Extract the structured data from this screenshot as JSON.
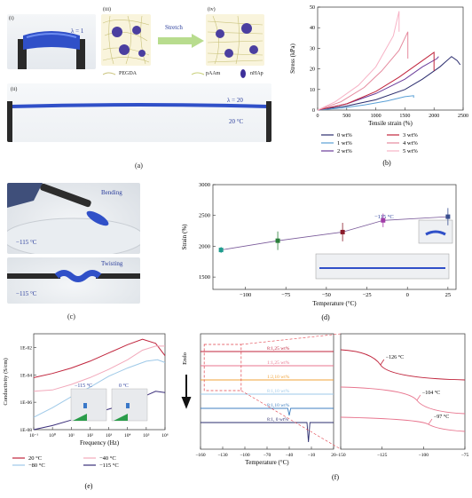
{
  "panel_a": {
    "label": "(a)",
    "sub_i": "(i)",
    "sub_ii": "(ii)",
    "sub_iii": "(iii)",
    "sub_iv": "(iv)",
    "lambda1": "λ = 1",
    "lambda20": "λ = 20",
    "temp": "20 °C",
    "stretch": "Stretch",
    "legend_pegda": "PEGDA",
    "legend_paam": "pAAm",
    "legend_nhap": "nHAp"
  },
  "panel_c": {
    "label": "(c)",
    "bending": "Bending",
    "twisting": "Twisting",
    "temp1": "−115 °C",
    "temp2": "−115 °C"
  },
  "chart_data": [
    {
      "id": "b",
      "type": "line",
      "label": "(b)",
      "xlabel": "Tensile strain (%)",
      "ylabel": "Stress (kPa)",
      "xlim": [
        0,
        2500
      ],
      "ylim": [
        0,
        50
      ],
      "xticks": [
        "0",
        "500",
        "1000",
        "1500",
        "2000",
        "2500"
      ],
      "yticks": [
        "0",
        "10",
        "20",
        "30",
        "40",
        "50"
      ],
      "series": [
        {
          "name": "0 wt%",
          "color": "#2b2d6e",
          "x": [
            0,
            500,
            1000,
            1500,
            1800,
            2100,
            2300,
            2400,
            2450
          ],
          "y": [
            0,
            2,
            5,
            10,
            15,
            21,
            26,
            24,
            22
          ]
        },
        {
          "name": "1 wt%",
          "color": "#5aa0d6",
          "x": [
            0,
            400,
            800,
            1200,
            1500,
            1650,
            1650
          ],
          "y": [
            0,
            1,
            2.5,
            4.5,
            6.5,
            7,
            6
          ]
        },
        {
          "name": "2 wt%",
          "color": "#6a3d9a",
          "x": [
            0,
            500,
            1000,
            1500,
            1800,
            2050,
            2080
          ],
          "y": [
            0,
            3,
            8,
            15,
            21,
            25,
            26
          ]
        },
        {
          "name": "3 wt%",
          "color": "#c0243c",
          "x": [
            0,
            500,
            1000,
            1400,
            1800,
            2000,
            2000
          ],
          "y": [
            0,
            3,
            9,
            16,
            24,
            28,
            19
          ]
        },
        {
          "name": "4 wt%",
          "color": "#e58a9e",
          "x": [
            0,
            400,
            800,
            1100,
            1400,
            1550,
            1550
          ],
          "y": [
            0,
            4,
            11,
            19,
            29,
            38,
            25
          ]
        },
        {
          "name": "5 wt%",
          "color": "#f7b3c6",
          "x": [
            0,
            300,
            700,
            1000,
            1300,
            1400,
            1400
          ],
          "y": [
            0,
            4,
            12,
            21,
            36,
            48,
            38
          ]
        }
      ]
    },
    {
      "id": "d",
      "type": "scatter",
      "label": "(d)",
      "xlabel": "Temperature (°C)",
      "ylabel": "Strain (%)",
      "xlim": [
        -120,
        30
      ],
      "ylim": [
        1300,
        3000
      ],
      "xticks": [
        "−100",
        "−75",
        "−50",
        "−25",
        "0",
        "25"
      ],
      "yticks": [
        "1500",
        "2000",
        "2500",
        "3000"
      ],
      "annotation": "−115 °C",
      "points": [
        {
          "x": -115,
          "y": 1940,
          "err": 50,
          "color": "#1f9c8d"
        },
        {
          "x": -80,
          "y": 2090,
          "err": 150,
          "color": "#2a7f3a"
        },
        {
          "x": -40,
          "y": 2230,
          "err": 150,
          "color": "#8a1c2a"
        },
        {
          "x": -15,
          "y": 2420,
          "err": 110,
          "color": "#a23ba8"
        },
        {
          "x": 25,
          "y": 2480,
          "err": 140,
          "color": "#3a4e8f"
        }
      ]
    },
    {
      "id": "e",
      "type": "line",
      "label": "(e)",
      "xlabel": "Frequency (Hz)",
      "ylabel": "Conductivity (S/cm)",
      "yscale": "log",
      "xscale": "log",
      "xticks": [
        "10⁻¹",
        "10⁰",
        "10¹",
        "10²",
        "10³",
        "10⁴",
        "10⁵",
        "10⁶"
      ],
      "yticks": [
        "1E-08",
        "1E-06",
        "1E-04",
        "1E-02"
      ],
      "inset_labels": [
        "−115 °C",
        "0 °C"
      ],
      "series": [
        {
          "name": "20 °C",
          "color": "#c0243c",
          "logx": [
            -1,
            0,
            1,
            2,
            3,
            4,
            4.8,
            5.5,
            6
          ],
          "logy": [
            -4.2,
            -3.9,
            -3.5,
            -3.0,
            -2.4,
            -1.8,
            -1.4,
            -1.7,
            -2.6
          ]
        },
        {
          "name": "−40 °C",
          "color": "#f2a9bb",
          "logx": [
            -1,
            0,
            1,
            2,
            3,
            4,
            4.8,
            5.5,
            6
          ],
          "logy": [
            -5.2,
            -5.1,
            -4.7,
            -4.2,
            -3.6,
            -2.9,
            -2.2,
            -1.9,
            -1.9
          ]
        },
        {
          "name": "−80 °C",
          "color": "#9ec9e8",
          "logx": [
            -1,
            0,
            1,
            2,
            3,
            4,
            5,
            5.6,
            6
          ],
          "logy": [
            -7.1,
            -6.4,
            -5.6,
            -4.9,
            -4.1,
            -3.5,
            -3.0,
            -2.9,
            -3.1
          ]
        },
        {
          "name": "−115 °C",
          "color": "#3a2e7a",
          "logx": [
            -1,
            0,
            1,
            2,
            3,
            4,
            5,
            5.5,
            6
          ],
          "logy": [
            -8.0,
            -7.7,
            -7.3,
            -6.9,
            -6.5,
            -6.1,
            -5.5,
            -5.2,
            -5.3
          ]
        }
      ]
    },
    {
      "id": "f",
      "type": "line",
      "label": "(f)",
      "xlabel": "Temperature (°C)",
      "ylabel": "Endo",
      "xticks_main": [
        "−160",
        "−130",
        "−100",
        "−70",
        "−40",
        "−10",
        "20"
      ],
      "xticks_zoom": [
        "−150",
        "−125",
        "−100",
        "−75"
      ],
      "series": [
        {
          "name": "8:1,25 wt%",
          "color": "#c0243c"
        },
        {
          "name": "1:1,25 wt%",
          "color": "#e8768f"
        },
        {
          "name": "1:2,10 wt%",
          "color": "#f0a33a"
        },
        {
          "name": "8:1,10 wt%",
          "color": "#9ec9e8"
        },
        {
          "name": "8:1,10 wt%",
          "color": "#3f7fc0"
        },
        {
          "name": "8:1, 0 wt%",
          "color": "#2b2d6e"
        }
      ],
      "annotations": [
        "−126 °C",
        "−104 °C",
        "−97 °C"
      ]
    }
  ]
}
